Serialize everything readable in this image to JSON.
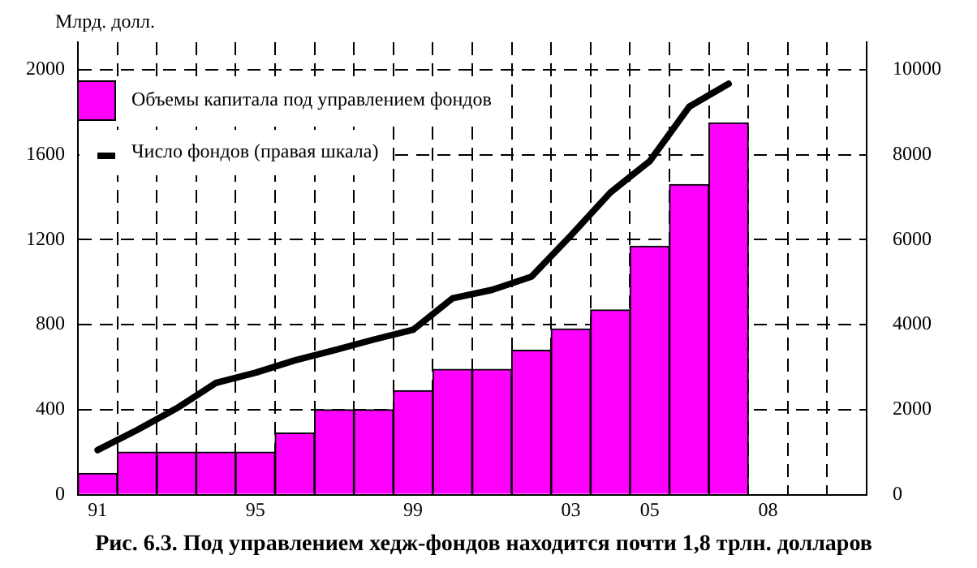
{
  "chart_data": {
    "type": "bar",
    "title": "Рис. 6.3. Под управлением хедж-фондов находится почти 1,8 трлн. долларов",
    "ylabel": "Млрд. долл.",
    "categories": [
      "91",
      null,
      null,
      null,
      "95",
      null,
      null,
      null,
      "99",
      null,
      null,
      null,
      "03",
      null,
      "05",
      null,
      null,
      "08",
      null,
      null
    ],
    "series": [
      {
        "name": "Объемы капитала под управлением фондов",
        "color": "#ff00ff",
        "values": [
          100,
          200,
          200,
          200,
          200,
          290,
          400,
          400,
          490,
          590,
          590,
          680,
          780,
          870,
          1170,
          1460,
          1750,
          null,
          null,
          null
        ]
      },
      {
        "name": "Число фондов (правая шкала)",
        "type": "line",
        "axis": "y2",
        "color": "#000000",
        "values": [
          1050,
          1520,
          2030,
          2630,
          2870,
          3160,
          3400,
          3650,
          3880,
          4620,
          4820,
          5130,
          6100,
          7110,
          7850,
          9130,
          9670,
          null,
          null,
          null
        ]
      }
    ],
    "ylim": [
      0,
      2130
    ],
    "yticks": [
      0,
      400,
      800,
      1200,
      1600,
      2000
    ],
    "y2lim": [
      0,
      10650
    ],
    "y2ticks": [
      0,
      2000,
      4000,
      6000,
      8000,
      10000
    ],
    "grid": true,
    "legend": "top left",
    "line_style": "solid",
    "marker": "none"
  }
}
